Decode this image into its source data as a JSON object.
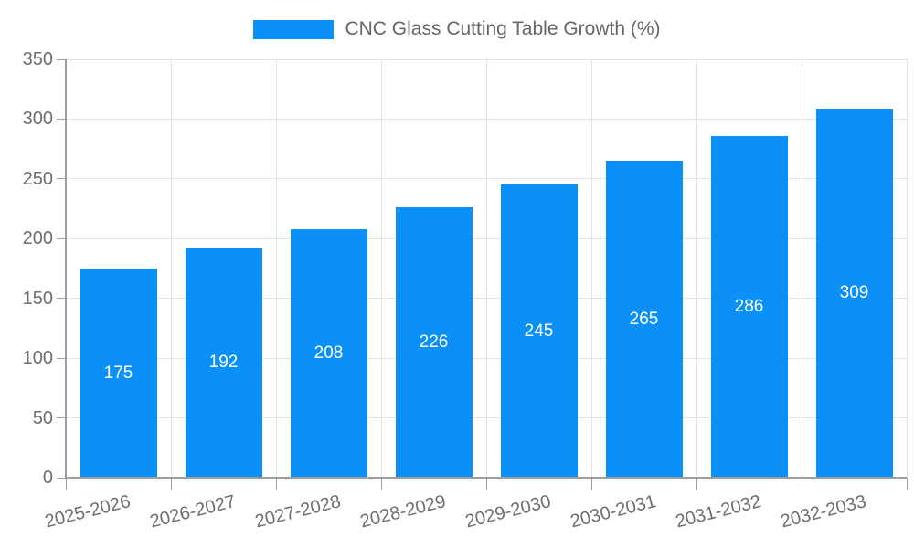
{
  "legend": {
    "label": "CNC Glass Cutting Table Growth (%)"
  },
  "chart_data": {
    "type": "bar",
    "title": "",
    "xlabel": "",
    "ylabel": "",
    "series_name": "CNC Glass Cutting Table Growth (%)",
    "categories": [
      "2025-2026",
      "2026-2027",
      "2027-2028",
      "2028-2029",
      "2029-2030",
      "2030-2031",
      "2031-2032",
      "2032-2033"
    ],
    "values": [
      175,
      192,
      208,
      226,
      245,
      265,
      286,
      309
    ],
    "value_labels": [
      "175",
      "192",
      "208",
      "226",
      "245",
      "265",
      "286",
      "309"
    ],
    "ylim": [
      0,
      350
    ],
    "yticks": [
      0,
      50,
      100,
      150,
      200,
      250,
      300,
      350
    ],
    "grid": true,
    "legend_position": "top",
    "colors": {
      "bar": "#0a90f6",
      "bar_value_text": "#ffffff",
      "grid": "#e4e4e4",
      "axis": "#9e9e9e",
      "tick_text": "#6e6e6e",
      "legend_text": "#666666"
    }
  }
}
